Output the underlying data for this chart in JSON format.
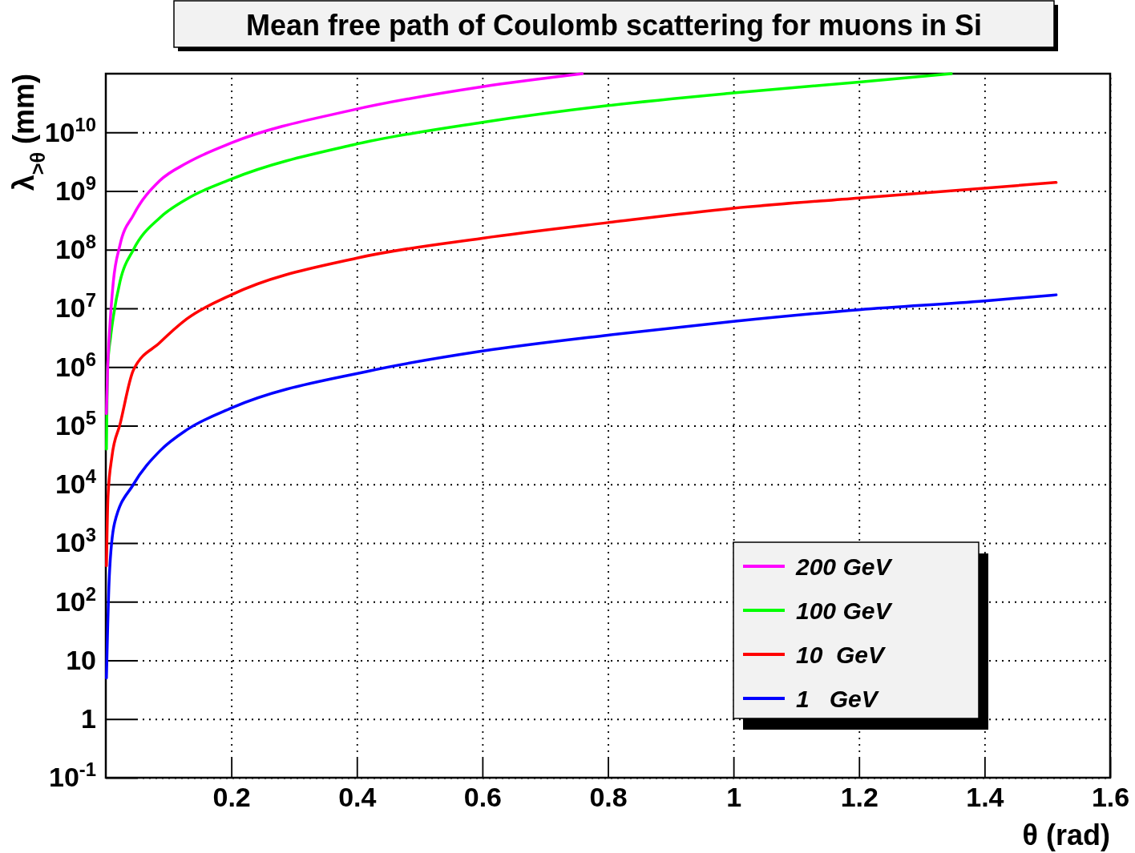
{
  "chart_data": {
    "type": "line",
    "title": "Mean free path of Coulomb scattering for muons in Si",
    "xlabel": "θ (rad)",
    "ylabel": "λ$_{>θ}$ (mm)",
    "xlim": [
      0,
      1.6
    ],
    "xticks": [
      0.2,
      0.4,
      0.6,
      0.8,
      1,
      1.2,
      1.4,
      1.6
    ],
    "ylim": [
      0.1,
      100000000000
    ],
    "log": true,
    "yticks": [
      {
        "value": 0.1,
        "label": "10$^{-1}$"
      },
      1,
      10,
      {
        "value": 100,
        "label": "10$^{2}$"
      },
      {
        "value": 1000,
        "label": "10$^{3}$"
      },
      {
        "value": 10000,
        "label": "10$^{4}$"
      },
      {
        "value": 100000,
        "label": "10$^{5}$"
      },
      {
        "value": 1000000,
        "label": "10$^{6}$"
      },
      {
        "value": 10000000,
        "label": "10$^{7}$"
      },
      {
        "value": 100000000,
        "label": "10$^{8}$"
      },
      {
        "value": 1000000000,
        "label": "10$^{9}$"
      },
      {
        "value": 10000000000,
        "label": "10$^{10}$"
      }
    ],
    "grid": true,
    "legend": "bottom right",
    "series": [
      {
        "name": "200 GeV",
        "color": "#ff00ff",
        "x": [
          0.001,
          0.003,
          0.0056,
          0.012,
          0.0226,
          0.044,
          0.086,
          0.129,
          0.2,
          0.393,
          0.6,
          0.759
        ],
        "values": [
          160000,
          1000000,
          3500000,
          28500000,
          120000000,
          390000000,
          1500000000,
          3000000000,
          6600000000,
          24000000000,
          60000000000,
          100000000000
        ]
      },
      {
        "name": "100 GeV",
        "color": "#00ff00",
        "x": [
          0.001,
          0.003,
          0.0077,
          0.012,
          0.0226,
          0.044,
          0.086,
          0.129,
          0.2,
          0.393,
          0.6,
          0.8,
          1.0,
          1.2,
          1.347
        ],
        "values": [
          40000,
          1000000,
          3300000,
          7200000,
          28500000,
          100000000,
          350000000,
          730000000,
          1600000000,
          6100000000,
          14800000000,
          28600000000,
          47000000000,
          72000000000,
          100000000000
        ]
      },
      {
        "name": "10  GeV",
        "color": "#ff0000",
        "x": [
          0.001,
          0.0035,
          0.0098,
          0.0226,
          0.044,
          0.086,
          0.129,
          0.2,
          0.4,
          0.6,
          0.8,
          1.0,
          1.2,
          1.514
        ],
        "values": [
          410,
          6200,
          30000,
          105000,
          890000,
          2600000,
          6600000,
          17000000,
          72000000,
          157000000,
          290000000,
          510000000,
          760000000,
          1400000000
        ]
      },
      {
        "name": "1   GeV",
        "color": "#0000ff",
        "x": [
          0.001,
          0.0056,
          0.014,
          0.044,
          0.086,
          0.129,
          0.2,
          0.418,
          0.6,
          0.8,
          1.0,
          1.2,
          1.4,
          1.514
        ],
        "values": [
          5,
          270,
          2200,
          10000,
          37000,
          85000,
          200000,
          850000,
          1870000,
          3500000,
          6000000,
          9500000,
          13400000,
          17000000
        ]
      }
    ]
  }
}
